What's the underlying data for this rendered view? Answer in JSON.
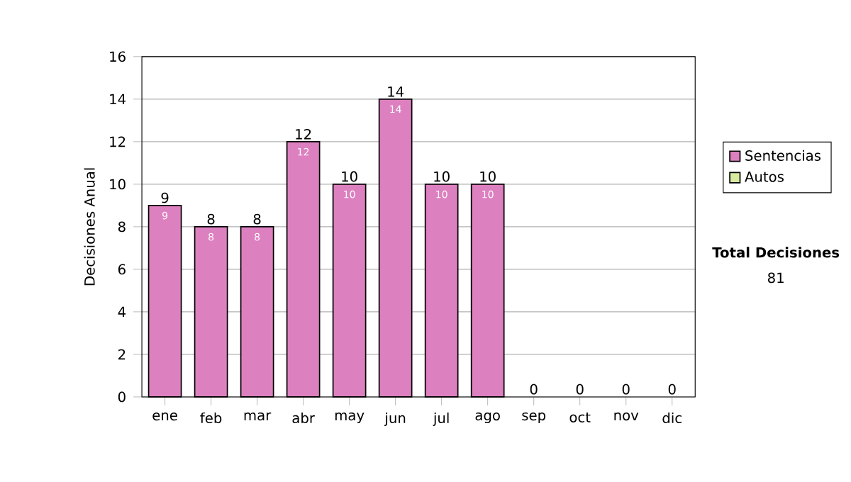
{
  "chart_data": {
    "type": "bar",
    "ylabel": "Decisiones Anual",
    "categories": [
      "ene",
      "feb",
      "mar",
      "abr",
      "may",
      "jun",
      "jul",
      "ago",
      "sep",
      "oct",
      "nov",
      "dic"
    ],
    "series": [
      {
        "name": "Sentencias",
        "color": "#dd80c0",
        "values": [
          9,
          8,
          8,
          12,
          10,
          14,
          10,
          10,
          0,
          0,
          0,
          0
        ],
        "value_labels": [
          "9",
          "8",
          "8",
          "12",
          "10",
          "14",
          "10",
          "10",
          null,
          null,
          null,
          null
        ]
      },
      {
        "name": "Autos",
        "color": "#d8eaa0",
        "values": [
          0,
          0,
          0,
          0,
          0,
          0,
          0,
          0,
          0,
          0,
          0,
          0
        ]
      }
    ],
    "stacked": true,
    "totals": [
      "9",
      "8",
      "8",
      "12",
      "10",
      "14",
      "10",
      "10",
      "0",
      "0",
      "0",
      "0"
    ],
    "ylim": [
      0,
      16
    ],
    "yticks": [
      0,
      2,
      4,
      6,
      8,
      10,
      12,
      14,
      16
    ],
    "grid": "y",
    "legend": "right",
    "annotations": [
      "**Total Decisiones**",
      "81"
    ]
  }
}
